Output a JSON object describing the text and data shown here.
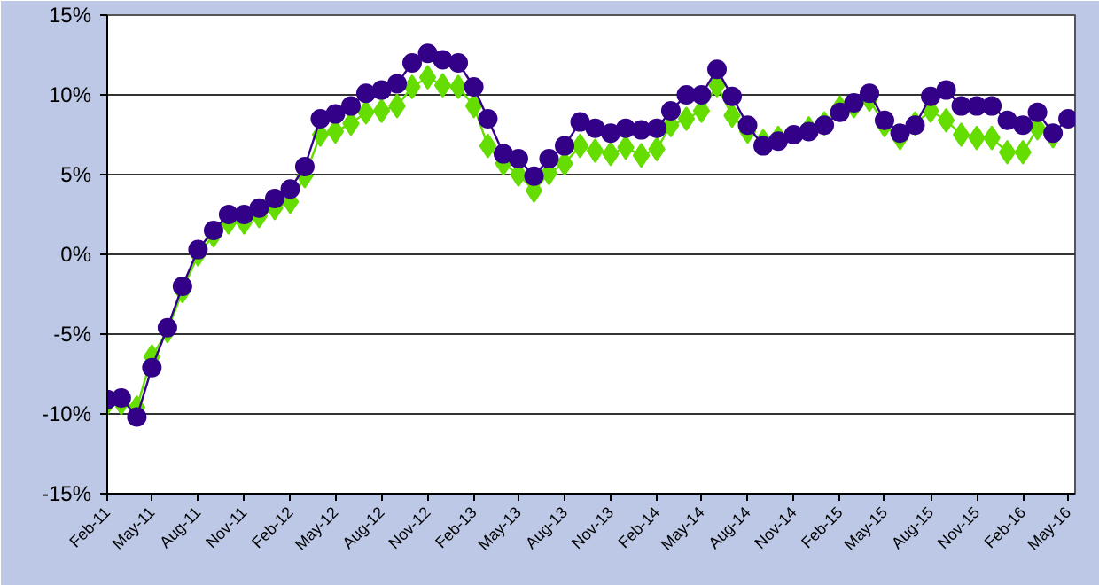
{
  "chart_data": {
    "type": "line",
    "x": [
      "2011-02",
      "2011-03",
      "2011-04",
      "2011-05",
      "2011-06",
      "2011-07",
      "2011-08",
      "2011-09",
      "2011-10",
      "2011-11",
      "2011-12",
      "2012-01",
      "2012-02",
      "2012-03",
      "2012-04",
      "2012-05",
      "2012-06",
      "2012-07",
      "2012-08",
      "2012-09",
      "2012-10",
      "2012-11",
      "2012-12",
      "2013-01",
      "2013-02",
      "2013-03",
      "2013-04",
      "2013-05",
      "2013-06",
      "2013-07",
      "2013-08",
      "2013-09",
      "2013-10",
      "2013-11",
      "2013-12",
      "2014-01",
      "2014-02",
      "2014-03",
      "2014-04",
      "2014-05",
      "2014-06",
      "2014-07",
      "2014-08",
      "2014-09",
      "2014-10",
      "2014-11",
      "2014-12",
      "2015-01",
      "2015-02",
      "2015-03",
      "2015-04",
      "2015-05",
      "2015-06",
      "2015-07",
      "2015-08",
      "2015-09",
      "2015-10",
      "2015-11",
      "2015-12",
      "2016-01",
      "2016-02",
      "2016-03",
      "2016-04",
      "2016-05"
    ],
    "series": [
      {
        "color": "#66dd00",
        "marker": "diamond",
        "values": [
          -9.3,
          -9.3,
          -9.6,
          -6.4,
          -4.8,
          -2.3,
          0,
          1.2,
          2.0,
          2.0,
          2.4,
          2.9,
          3.3,
          4.9,
          7.5,
          7.7,
          8.2,
          8.9,
          9.0,
          9.3,
          10.5,
          11.1,
          10.6,
          10.5,
          9.3,
          6.8,
          5.7,
          5.0,
          4.0,
          5.1,
          5.7,
          6.8,
          6.5,
          6.3,
          6.7,
          6.2,
          6.6,
          8.1,
          8.5,
          9.0,
          10.6,
          8.7,
          7.7,
          7.1,
          7.3,
          null,
          7.9,
          8.2,
          9.2,
          9.3,
          9.7,
          8.1,
          7.3,
          8.2,
          9.0,
          8.4,
          7.5,
          7.3,
          7.3,
          6.4,
          6.4,
          7.9,
          7.4,
          null
        ]
      },
      {
        "color": "#330088",
        "marker": "circle",
        "values": [
          -9.1,
          -9.0,
          -10.2,
          -7.1,
          -4.6,
          -2.0,
          0.3,
          1.5,
          2.5,
          2.5,
          2.9,
          3.5,
          4.1,
          5.5,
          8.5,
          8.8,
          9.3,
          10.1,
          10.3,
          10.7,
          12.0,
          12.6,
          12.2,
          12.0,
          10.5,
          8.5,
          6.3,
          6.0,
          4.9,
          6.0,
          6.8,
          8.3,
          7.9,
          7.6,
          7.9,
          7.8,
          7.9,
          9.0,
          10.0,
          10.0,
          11.6,
          9.9,
          8.1,
          6.8,
          7.1,
          7.5,
          7.7,
          8.1,
          8.9,
          9.5,
          10.1,
          8.4,
          7.6,
          8.1,
          9.9,
          10.3,
          9.3,
          9.3,
          9.3,
          8.4,
          8.1,
          8.9,
          7.6,
          8.5
        ]
      }
    ],
    "xlim": [
      "2011-02-01",
      "2016-05-15"
    ],
    "xticks": [
      {
        "value": "2011-02",
        "label": "Feb-11"
      },
      {
        "value": "2011-05",
        "label": "May-11"
      },
      {
        "value": "2011-08",
        "label": "Aug-11"
      },
      {
        "value": "2011-11",
        "label": "Nov-11"
      },
      {
        "value": "2012-02",
        "label": "Feb-12"
      },
      {
        "value": "2012-05",
        "label": "May-12"
      },
      {
        "value": "2012-08",
        "label": "Aug-12"
      },
      {
        "value": "2012-11",
        "label": "Nov-12"
      },
      {
        "value": "2013-02",
        "label": "Feb-13"
      },
      {
        "value": "2013-05",
        "label": "May-13"
      },
      {
        "value": "2013-08",
        "label": "Aug-13"
      },
      {
        "value": "2013-11",
        "label": "Nov-13"
      },
      {
        "value": "2014-02",
        "label": "Feb-14"
      },
      {
        "value": "2014-05",
        "label": "May-14"
      },
      {
        "value": "2014-08",
        "label": "Aug-14"
      },
      {
        "value": "2014-11",
        "label": "Nov-14"
      },
      {
        "value": "2015-02",
        "label": "Feb-15"
      },
      {
        "value": "2015-05",
        "label": "May-15"
      },
      {
        "value": "2015-08",
        "label": "Aug-15"
      },
      {
        "value": "2015-11",
        "label": "Nov-15"
      },
      {
        "value": "2016-02",
        "label": "Feb-16"
      },
      {
        "value": "2016-05",
        "label": "May-16"
      }
    ],
    "ylim": [
      -15,
      15
    ],
    "yticks": [
      {
        "value": -15,
        "label": "-15%"
      },
      {
        "value": -10,
        "label": "-10%"
      },
      {
        "value": -5,
        "label": "-5%"
      },
      {
        "value": 0,
        "label": "0%"
      },
      {
        "value": 5,
        "label": "5%"
      },
      {
        "value": 10,
        "label": "10%"
      },
      {
        "value": 15,
        "label": "15%"
      }
    ],
    "grid": "y"
  }
}
